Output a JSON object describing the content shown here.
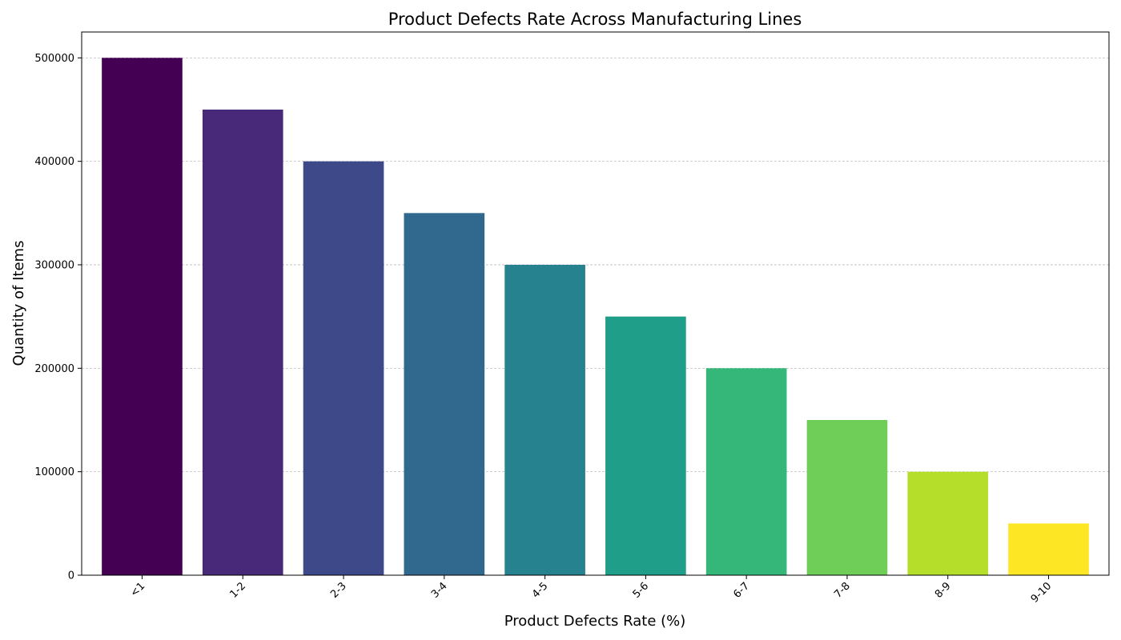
{
  "chart_data": {
    "type": "bar",
    "title": "Product Defects Rate Across Manufacturing Lines",
    "xlabel": "Product Defects Rate (%)",
    "ylabel": "Quantity of Items",
    "categories": [
      "<1",
      "1-2",
      "2-3",
      "3-4",
      "4-5",
      "5-6",
      "6-7",
      "7-8",
      "8-9",
      "9-10"
    ],
    "values": [
      500000,
      450000,
      400000,
      350000,
      300000,
      250000,
      200000,
      150000,
      100000,
      50000
    ],
    "colors": [
      "#440154",
      "#482878",
      "#3e4989",
      "#31688e",
      "#26828e",
      "#1f9e89",
      "#35b779",
      "#6ece58",
      "#b5de2b",
      "#fde725"
    ],
    "ylim": [
      0,
      525000
    ],
    "yticks": [
      0,
      100000,
      200000,
      300000,
      400000,
      500000
    ],
    "grid": "y-dashed"
  }
}
